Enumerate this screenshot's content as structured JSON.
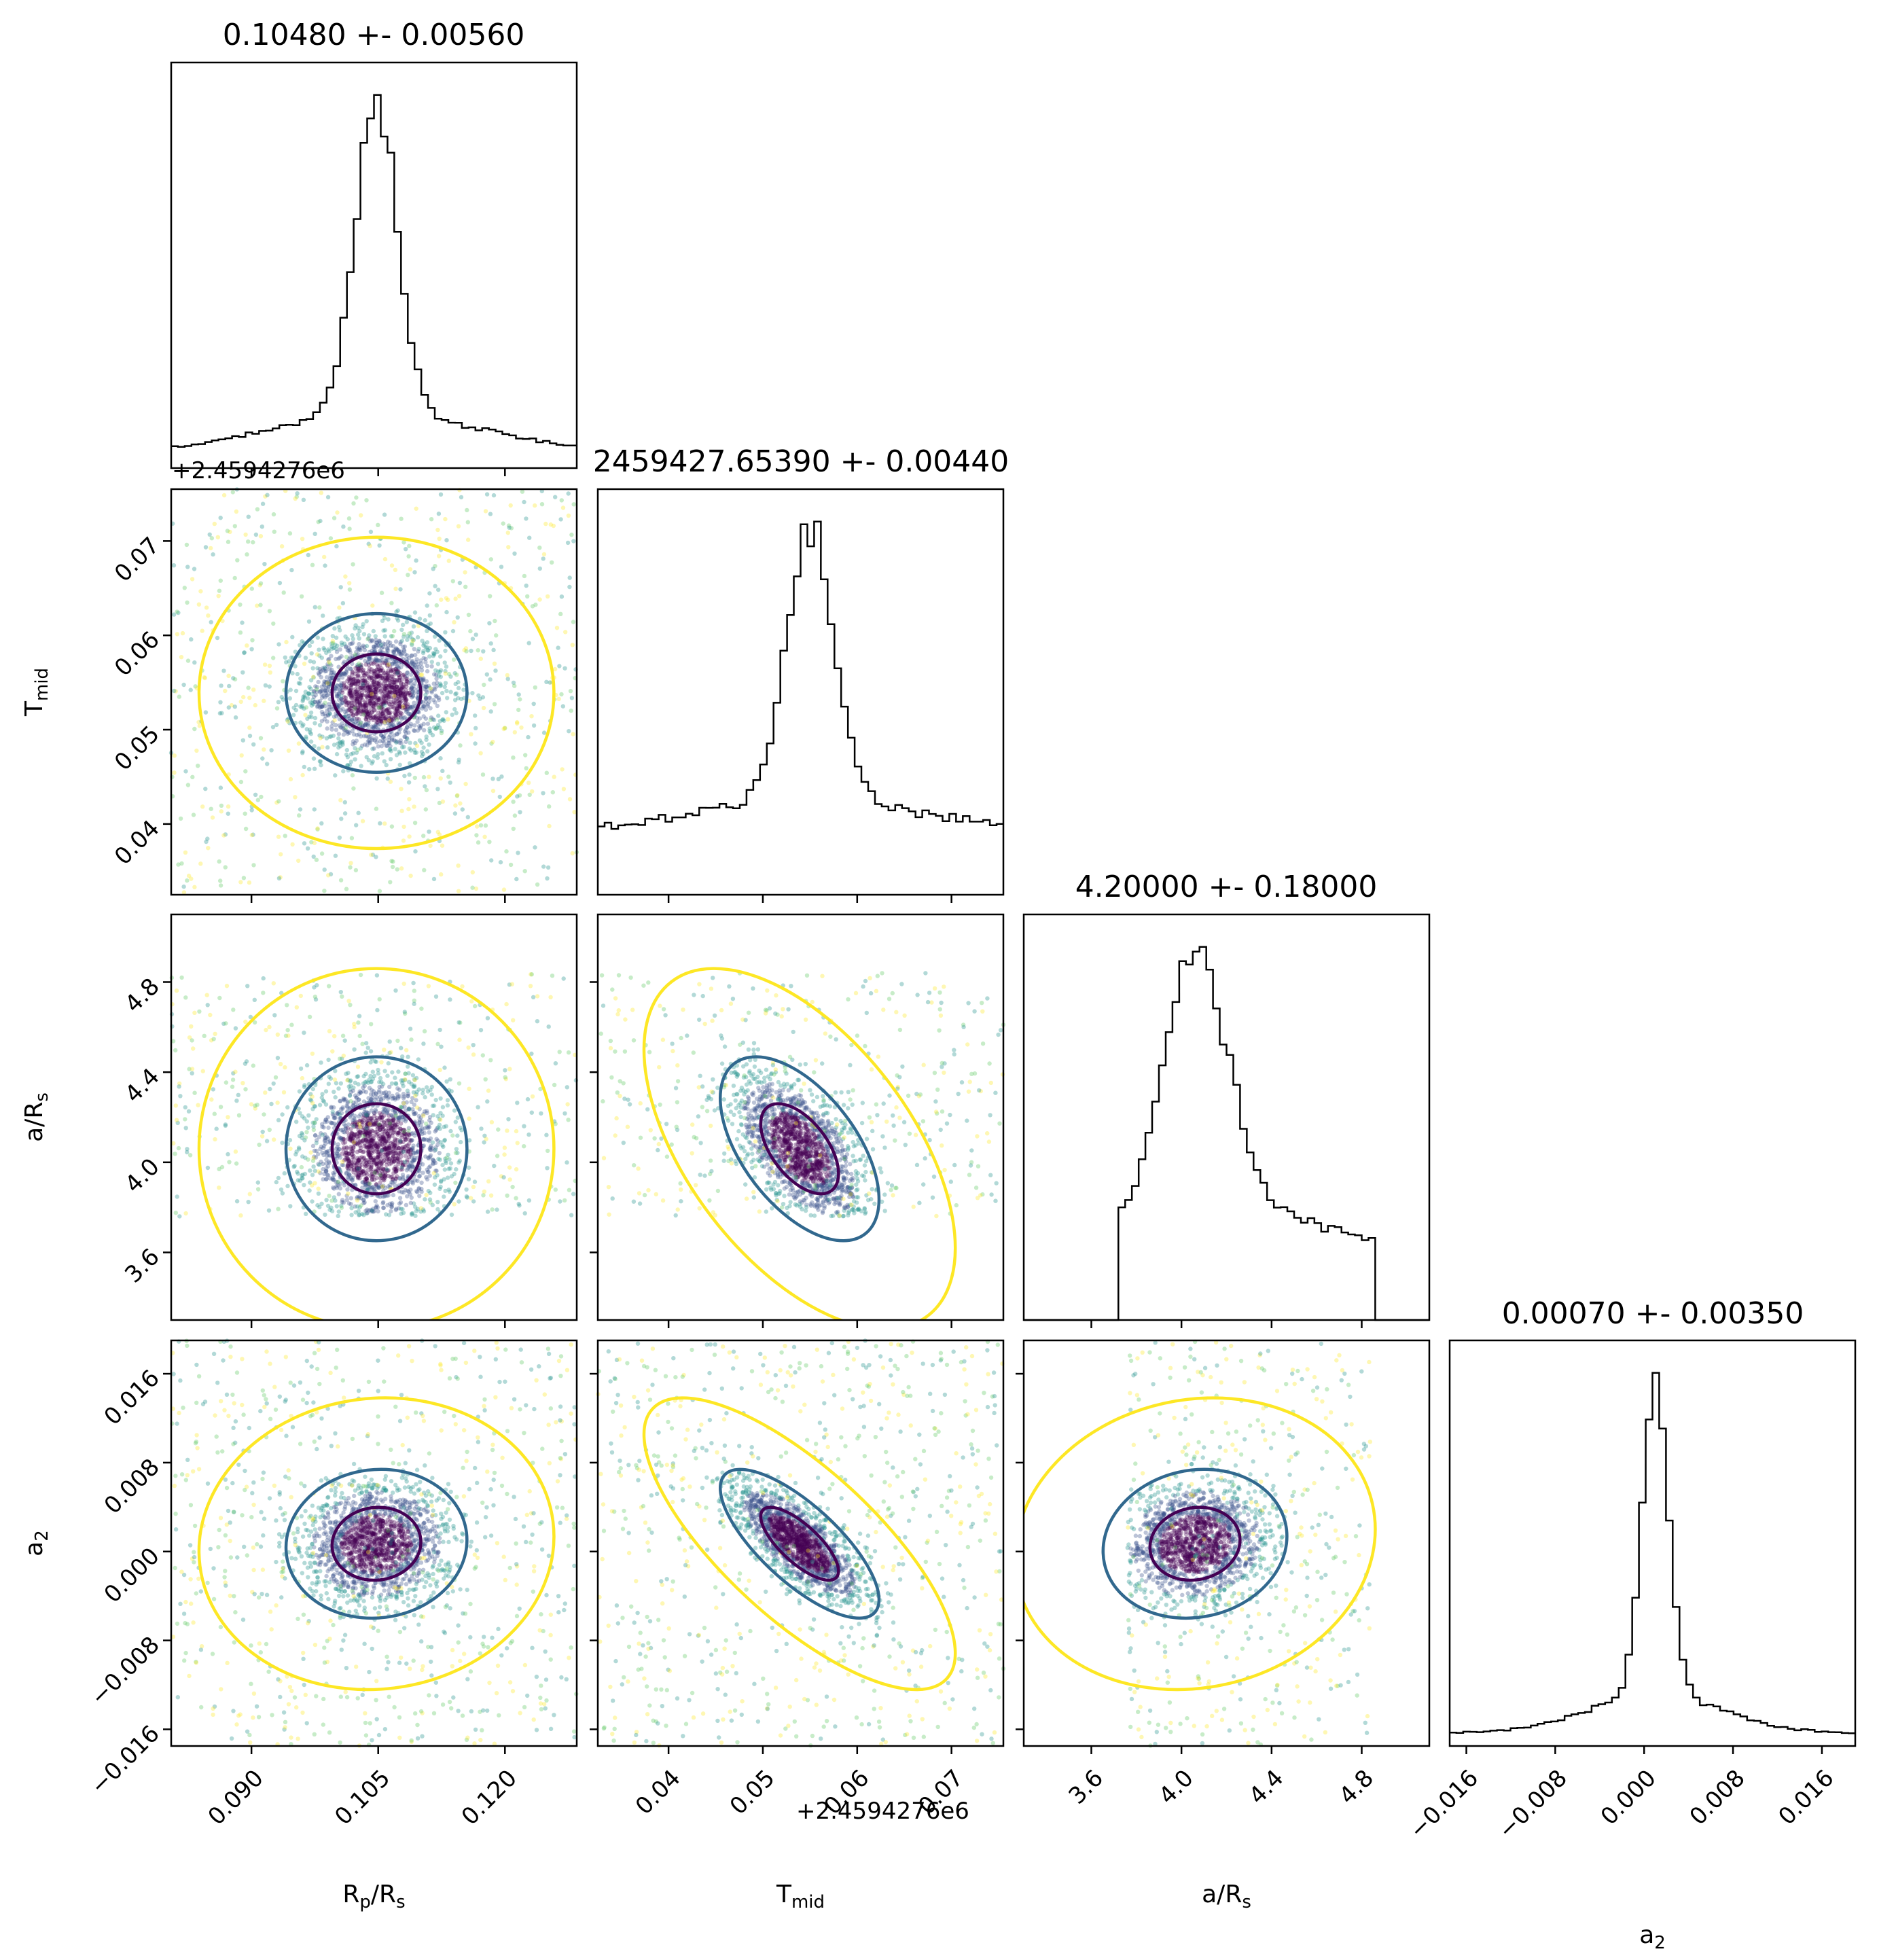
{
  "chart_data": {
    "type": "corner",
    "title": "",
    "parameters": [
      {
        "id": "rprs",
        "label": "R",
        "label_sub": "p",
        "label_rest": "/R",
        "label_sub2": "s",
        "title": "0.10480 +- 0.00560",
        "mean": 0.1048,
        "sigma": 0.0056,
        "range": [
          0.0805,
          0.1285
        ],
        "ticks": [
          0.09,
          0.105,
          0.12
        ],
        "tick_labels": [
          "0.090",
          "0.105",
          "0.120"
        ]
      },
      {
        "id": "tmid",
        "label": "T",
        "label_sub": "mid",
        "label_rest": "",
        "label_sub2": "",
        "title": "2459427.65390 +- 0.00440",
        "mean": 0.0539,
        "sigma": 0.0044,
        "range": [
          0.0325,
          0.0755
        ],
        "ticks": [
          0.04,
          0.05,
          0.06,
          0.07
        ],
        "tick_labels": [
          "0.04",
          "0.05",
          "0.06",
          "0.07"
        ],
        "offset_label": "+2.4594276e6"
      },
      {
        "id": "ars",
        "label": "a/R",
        "label_sub": "s",
        "label_rest": "",
        "label_sub2": "",
        "title": "4.20000 +- 0.18000",
        "mean": 4.2,
        "sigma": 0.18,
        "range": [
          3.3,
          5.1
        ],
        "ticks": [
          3.6,
          4.0,
          4.4,
          4.8
        ],
        "tick_labels": [
          "3.6",
          "4.0",
          "4.4",
          "4.8"
        ]
      },
      {
        "id": "a2",
        "label": "a",
        "label_sub": "2",
        "label_rest": "",
        "label_sub2": "",
        "title": "0.00070 +- 0.00350",
        "mean": 0.0007,
        "sigma": 0.0035,
        "range": [
          -0.0175,
          0.019
        ],
        "ticks": [
          -0.016,
          -0.008,
          0.0,
          0.008,
          0.016
        ],
        "tick_labels": [
          "−0.016",
          "−0.008",
          "0.000",
          "0.008",
          "0.016"
        ]
      }
    ],
    "histograms": [
      {
        "param": "rprs",
        "peak": 0.1048,
        "width": 0.0025,
        "base": 0.05
      },
      {
        "param": "tmid",
        "peak": 0.055,
        "width": 0.0025,
        "base": 0.22
      },
      {
        "param": "ars",
        "peak": 4.06,
        "width": 0.14,
        "base": 0.25,
        "support": [
          3.72,
          4.86
        ]
      },
      {
        "param": "a2",
        "peak": 0.001,
        "width": 0.0012,
        "base": 0.04
      }
    ],
    "contour_levels": [
      "inner",
      "outer",
      "outermost"
    ],
    "colors": {
      "inner": "#440154",
      "outer": "#31688e",
      "outermost": "#fde725",
      "points_colormap": "viridis"
    }
  }
}
